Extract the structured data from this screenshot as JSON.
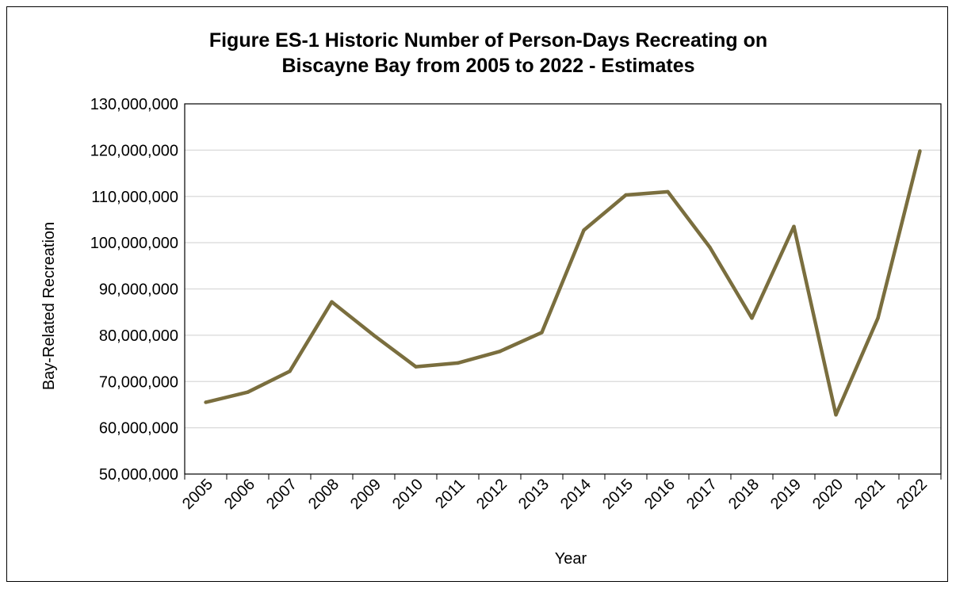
{
  "chart_data": {
    "type": "line",
    "title_lines": [
      "Figure ES-1 Historic Number of Person-Days Recreating on",
      "Biscayne Bay from 2005 to 2022 - Estimates"
    ],
    "xlabel": "Year",
    "ylabel": "Bay-Related Recreation",
    "ylim": [
      50000000,
      130000000
    ],
    "y_ticks": [
      50000000,
      60000000,
      70000000,
      80000000,
      90000000,
      100000000,
      110000000,
      120000000,
      130000000
    ],
    "y_tick_labels": [
      "50,000,000",
      "60,000,000",
      "70,000,000",
      "80,000,000",
      "90,000,000",
      "100,000,000",
      "110,000,000",
      "120,000,000",
      "130,000,000"
    ],
    "grid": "horizontal",
    "legend": "none",
    "categories": [
      "2005",
      "2006",
      "2007",
      "2008",
      "2009",
      "2010",
      "2011",
      "2012",
      "2013",
      "2014",
      "2015",
      "2016",
      "2017",
      "2018",
      "2019",
      "2020",
      "2021",
      "2022"
    ],
    "series": [
      {
        "values": [
          65500000,
          67700000,
          72200000,
          87200000,
          80000000,
          73200000,
          74000000,
          76500000,
          80600000,
          102700000,
          110300000,
          111000000,
          99000000,
          83700000,
          103500000,
          62800000,
          83700000,
          119800000
        ],
        "color": "#7a6e3e"
      }
    ]
  }
}
